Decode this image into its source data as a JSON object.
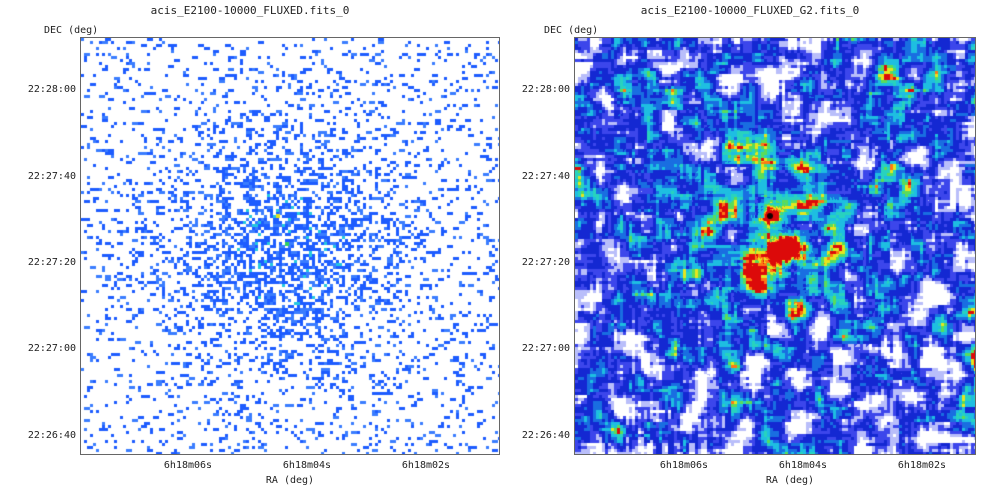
{
  "panels": [
    {
      "title": "acis_E2100-10000_FLUXED.fits_0",
      "ylabel": "DEC (deg)",
      "xlabel": "RA (deg)",
      "yticks": [
        "22:28:00",
        "22:27:40",
        "22:27:20",
        "22:27:00",
        "22:26:40"
      ],
      "xticks": [
        "6h18m06s",
        "6h18m04s",
        "6h18m02s"
      ],
      "style": "raw counts image, sparse blue pixels with faint concentration at center"
    },
    {
      "title": "acis_E2100-10000_FLUXED_G2.fits_0",
      "ylabel": "DEC (deg)",
      "xlabel": "RA (deg)",
      "yticks": [
        "22:28:00",
        "22:27:40",
        "22:27:20",
        "22:27:00",
        "22:26:40"
      ],
      "xticks": [
        "6h18m06s",
        "6h18m04s",
        "6h18m02s"
      ],
      "style": "gaussian-smoothed image, dense blue background with cyan/green diffuse emission and two red peaks near center"
    }
  ],
  "colors": {
    "background": "#ffffff",
    "low": "#1a3cff",
    "mid": "#22c4e8",
    "high": "#ff2a10"
  }
}
